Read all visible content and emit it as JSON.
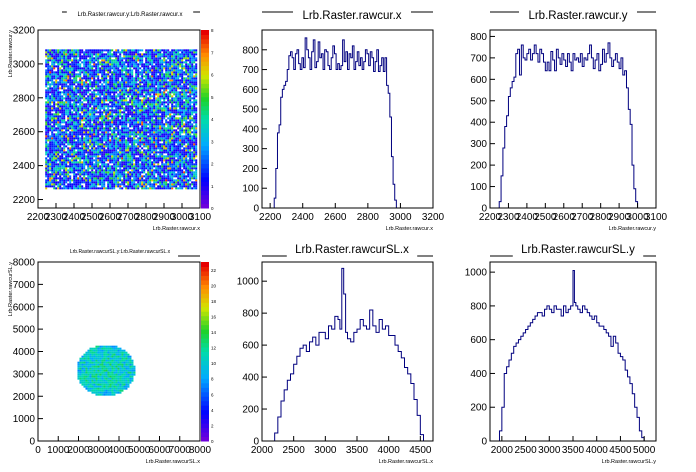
{
  "chart_data": [
    {
      "id": "p1",
      "type": "heatmap",
      "title": "Lrb.Raster.rawcur.y:Lrb.Raster.rawcur.x",
      "xlabel": "Lrb.Raster.rawcur.x",
      "ylabel": "Lrb.Raster.rawcur.y",
      "xlim": [
        2200,
        3100
      ],
      "ylim": [
        2150,
        3200
      ],
      "x_ticks": [
        2200,
        2300,
        2400,
        2500,
        2600,
        2700,
        2800,
        2900,
        3000,
        3100
      ],
      "x_tick_labels": [
        "2200",
        "2300",
        "2400",
        "2500",
        "2600",
        "2700",
        "2800",
        "2900",
        "3000",
        "3100"
      ],
      "y_ticks": [
        2200,
        2400,
        2600,
        2800,
        3000,
        3200
      ],
      "y_tick_labels": [
        "2200",
        "2400",
        "2600",
        "2800",
        "3000",
        "3200"
      ],
      "region": {
        "shape": "rect",
        "x": [
          2240,
          3080
        ],
        "y": [
          2260,
          3080
        ]
      },
      "zlim": [
        0,
        8
      ],
      "z_ticks": [
        0,
        1,
        2,
        3,
        4,
        5,
        6,
        7,
        8
      ],
      "z_tick_labels": [
        "0",
        "1",
        "2",
        "3",
        "4",
        "5",
        "6",
        "7",
        "8"
      ]
    },
    {
      "id": "p2",
      "type": "line",
      "title": "Lrb.Raster.rawcur.x",
      "xlabel": "Lrb.Raster.rawcur.x",
      "xlim": [
        2150,
        3200
      ],
      "ylim": [
        0,
        900
      ],
      "x_ticks": [
        2200,
        2400,
        2600,
        2800,
        3000,
        3200
      ],
      "x_tick_labels": [
        "2200",
        "2400",
        "2600",
        "2800",
        "3000",
        "3200"
      ],
      "y_ticks": [
        0,
        100,
        200,
        300,
        400,
        500,
        600,
        700,
        800
      ],
      "y_tick_labels": [
        "0",
        "100",
        "200",
        "300",
        "400",
        "500",
        "600",
        "700",
        "800"
      ],
      "x": [
        2150,
        2195,
        2215,
        2225,
        2235,
        2245,
        2255,
        2265,
        2275,
        2285,
        2295,
        2305,
        2315,
        2325,
        2335,
        2345,
        2355,
        2365,
        2375,
        2385,
        2395,
        2405,
        2415,
        2425,
        2435,
        2445,
        2455,
        2465,
        2475,
        2485,
        2495,
        2505,
        2515,
        2525,
        2535,
        2545,
        2555,
        2565,
        2575,
        2585,
        2595,
        2605,
        2615,
        2625,
        2635,
        2645,
        2655,
        2665,
        2675,
        2685,
        2695,
        2705,
        2715,
        2725,
        2735,
        2745,
        2755,
        2765,
        2775,
        2785,
        2795,
        2805,
        2815,
        2825,
        2835,
        2845,
        2855,
        2865,
        2875,
        2885,
        2895,
        2905,
        2915,
        2925,
        2935,
        2945,
        2955,
        2965,
        2975,
        2985,
        2995,
        3005,
        3015,
        3025,
        3035,
        3045,
        3055,
        3065,
        3075,
        3085,
        3095,
        3105,
        3200
      ],
      "y": [
        0,
        0,
        0,
        50,
        200,
        380,
        420,
        560,
        600,
        620,
        640,
        700,
        770,
        790,
        760,
        700,
        780,
        800,
        730,
        700,
        760,
        710,
        860,
        800,
        760,
        700,
        790,
        850,
        710,
        740,
        840,
        760,
        780,
        700,
        800,
        790,
        720,
        700,
        760,
        820,
        780,
        700,
        730,
        700,
        720,
        850,
        740,
        790,
        700,
        780,
        760,
        820,
        700,
        740,
        790,
        720,
        760,
        700,
        740,
        800,
        780,
        720,
        790,
        760,
        690,
        740,
        800,
        690,
        720,
        760,
        690,
        760,
        620,
        580,
        460,
        260,
        120,
        40,
        0,
        0,
        0,
        0,
        0,
        0,
        0,
        0,
        0,
        0,
        0,
        0,
        0,
        0,
        0
      ]
    },
    {
      "id": "p3",
      "type": "line",
      "title": "Lrb.Raster.rawcur.y",
      "xlabel": "Lrb.Raster.rawcur.y",
      "xlim": [
        2200,
        3100
      ],
      "ylim": [
        0,
        830
      ],
      "x_ticks": [
        2200,
        2300,
        2400,
        2500,
        2600,
        2700,
        2800,
        2900,
        3000,
        3100
      ],
      "x_tick_labels": [
        "2200",
        "2300",
        "2400",
        "2500",
        "2600",
        "2700",
        "2800",
        "2900",
        "3000",
        "3100"
      ],
      "y_ticks": [
        0,
        100,
        200,
        300,
        400,
        500,
        600,
        700,
        800
      ],
      "y_tick_labels": [
        "0",
        "100",
        "200",
        "300",
        "400",
        "500",
        "600",
        "700",
        "800"
      ],
      "x": [
        2200,
        2220,
        2240,
        2250,
        2260,
        2270,
        2280,
        2290,
        2300,
        2310,
        2320,
        2330,
        2340,
        2350,
        2360,
        2370,
        2380,
        2390,
        2400,
        2410,
        2420,
        2430,
        2440,
        2450,
        2460,
        2470,
        2480,
        2490,
        2500,
        2510,
        2520,
        2530,
        2540,
        2550,
        2560,
        2570,
        2580,
        2590,
        2600,
        2610,
        2620,
        2630,
        2640,
        2650,
        2660,
        2670,
        2680,
        2690,
        2700,
        2710,
        2720,
        2730,
        2740,
        2750,
        2760,
        2770,
        2780,
        2790,
        2800,
        2810,
        2820,
        2830,
        2840,
        2850,
        2860,
        2870,
        2880,
        2890,
        2900,
        2910,
        2920,
        2930,
        2940,
        2950,
        2960,
        2970,
        2980,
        2990,
        3000,
        3010,
        3020,
        3030,
        3040,
        3050,
        3060,
        3070,
        3080,
        3100
      ],
      "y": [
        0,
        0,
        0,
        30,
        150,
        280,
        380,
        430,
        520,
        560,
        590,
        610,
        720,
        740,
        620,
        760,
        700,
        690,
        720,
        740,
        690,
        720,
        760,
        720,
        680,
        740,
        720,
        680,
        640,
        680,
        640,
        730,
        690,
        640,
        740,
        700,
        670,
        720,
        690,
        660,
        720,
        680,
        640,
        720,
        690,
        700,
        680,
        720,
        660,
        700,
        690,
        720,
        760,
        700,
        650,
        690,
        720,
        640,
        670,
        740,
        680,
        720,
        770,
        700,
        660,
        690,
        720,
        680,
        650,
        700,
        620,
        640,
        560,
        460,
        390,
        200,
        90,
        30,
        0,
        0,
        0,
        0,
        0,
        0,
        0,
        0,
        0,
        0
      ]
    },
    {
      "id": "p4",
      "type": "heatmap",
      "title": "Lrb.Raster.rawcurSL.y:Lrb.Raster.rawcurSL.x",
      "xlabel": "Lrb.Raster.rawcurSL.x",
      "ylabel": "Lrb.Raster.rawcurSL.y",
      "xlim": [
        0,
        8000
      ],
      "ylim": [
        0,
        8000
      ],
      "x_ticks": [
        0,
        1000,
        2000,
        3000,
        4000,
        5000,
        6000,
        7000,
        8000
      ],
      "x_tick_labels": [
        "0",
        "1000",
        "2000",
        "3000",
        "4000",
        "5000",
        "6000",
        "7000",
        "8000"
      ],
      "y_ticks": [
        0,
        1000,
        2000,
        3000,
        4000,
        5000,
        6000,
        7000,
        8000
      ],
      "y_tick_labels": [
        "0",
        "1000",
        "2000",
        "3000",
        "4000",
        "5000",
        "6000",
        "7000",
        "8000"
      ],
      "region": {
        "shape": "ellipse",
        "cx": 3300,
        "cy": 3200,
        "rx": 1450,
        "ry": 1150
      },
      "zlim": [
        0,
        23
      ],
      "z_ticks": [
        0,
        2,
        4,
        6,
        8,
        10,
        12,
        14,
        16,
        18,
        20,
        22
      ],
      "z_tick_labels": [
        "0",
        "2",
        "4",
        "6",
        "8",
        "10",
        "12",
        "14",
        "16",
        "18",
        "20",
        "22"
      ]
    },
    {
      "id": "p5",
      "type": "line",
      "title": "Lrb.Raster.rawcurSL.x",
      "xlabel": "Lrb.Raster.rawcurSL.x",
      "xlim": [
        2000,
        4700
      ],
      "ylim": [
        0,
        1120
      ],
      "x_ticks": [
        2000,
        2500,
        3000,
        3500,
        4000,
        4500
      ],
      "x_tick_labels": [
        "2000",
        "2500",
        "3000",
        "3500",
        "4000",
        "4500"
      ],
      "y_ticks": [
        0,
        200,
        400,
        600,
        800,
        1000
      ],
      "y_tick_labels": [
        "0",
        "200",
        "400",
        "600",
        "800",
        "1000"
      ],
      "x": [
        2000,
        2150,
        2200,
        2250,
        2300,
        2350,
        2400,
        2450,
        2500,
        2550,
        2600,
        2650,
        2700,
        2750,
        2800,
        2850,
        2900,
        2950,
        3000,
        3050,
        3100,
        3150,
        3200,
        3230,
        3260,
        3290,
        3320,
        3350,
        3400,
        3450,
        3500,
        3550,
        3600,
        3650,
        3700,
        3750,
        3800,
        3850,
        3900,
        3950,
        4000,
        4050,
        4100,
        4150,
        4200,
        4250,
        4300,
        4350,
        4400,
        4450,
        4500,
        4550,
        4600,
        4700
      ],
      "y": [
        0,
        0,
        50,
        150,
        250,
        320,
        380,
        420,
        480,
        530,
        580,
        600,
        560,
        620,
        650,
        600,
        680,
        680,
        640,
        720,
        700,
        780,
        760,
        700,
        1080,
        920,
        680,
        640,
        620,
        680,
        700,
        760,
        720,
        700,
        820,
        720,
        680,
        760,
        700,
        720,
        660,
        660,
        600,
        560,
        520,
        460,
        420,
        360,
        260,
        160,
        40,
        0,
        0,
        0
      ]
    },
    {
      "id": "p6",
      "type": "line",
      "title": "Lrb.Raster.rawcurSL.y",
      "xlabel": "Lrb.Raster.rawcurSL.y",
      "xlim": [
        1750,
        5250
      ],
      "ylim": [
        0,
        1060
      ],
      "x_ticks": [
        2000,
        2500,
        3000,
        3500,
        4000,
        4500,
        5000
      ],
      "x_tick_labels": [
        "2000",
        "2500",
        "3000",
        "3500",
        "4000",
        "4500",
        "5000"
      ],
      "y_ticks": [
        0,
        200,
        400,
        600,
        800,
        1000
      ],
      "y_tick_labels": [
        "0",
        "200",
        "400",
        "600",
        "800",
        "1000"
      ],
      "x": [
        1750,
        1900,
        1950,
        2000,
        2050,
        2100,
        2150,
        2200,
        2250,
        2300,
        2350,
        2400,
        2450,
        2500,
        2550,
        2600,
        2650,
        2700,
        2750,
        2800,
        2850,
        2900,
        2950,
        3000,
        3050,
        3100,
        3150,
        3200,
        3250,
        3300,
        3350,
        3400,
        3450,
        3500,
        3530,
        3560,
        3600,
        3650,
        3700,
        3750,
        3800,
        3850,
        3900,
        3950,
        4000,
        4050,
        4100,
        4150,
        4200,
        4250,
        4300,
        4350,
        4400,
        4450,
        4500,
        4550,
        4600,
        4650,
        4700,
        4750,
        4800,
        4850,
        4900,
        4950,
        5000,
        5050,
        5100,
        5250
      ],
      "y": [
        0,
        0,
        60,
        200,
        400,
        440,
        480,
        520,
        560,
        580,
        600,
        620,
        640,
        660,
        680,
        700,
        720,
        740,
        760,
        760,
        740,
        780,
        800,
        780,
        760,
        800,
        780,
        780,
        740,
        800,
        760,
        780,
        800,
        1010,
        820,
        800,
        780,
        760,
        800,
        780,
        760,
        740,
        720,
        740,
        700,
        680,
        680,
        660,
        640,
        620,
        560,
        620,
        580,
        520,
        500,
        480,
        420,
        380,
        340,
        280,
        200,
        140,
        60,
        20,
        0,
        0,
        0,
        0
      ]
    }
  ]
}
